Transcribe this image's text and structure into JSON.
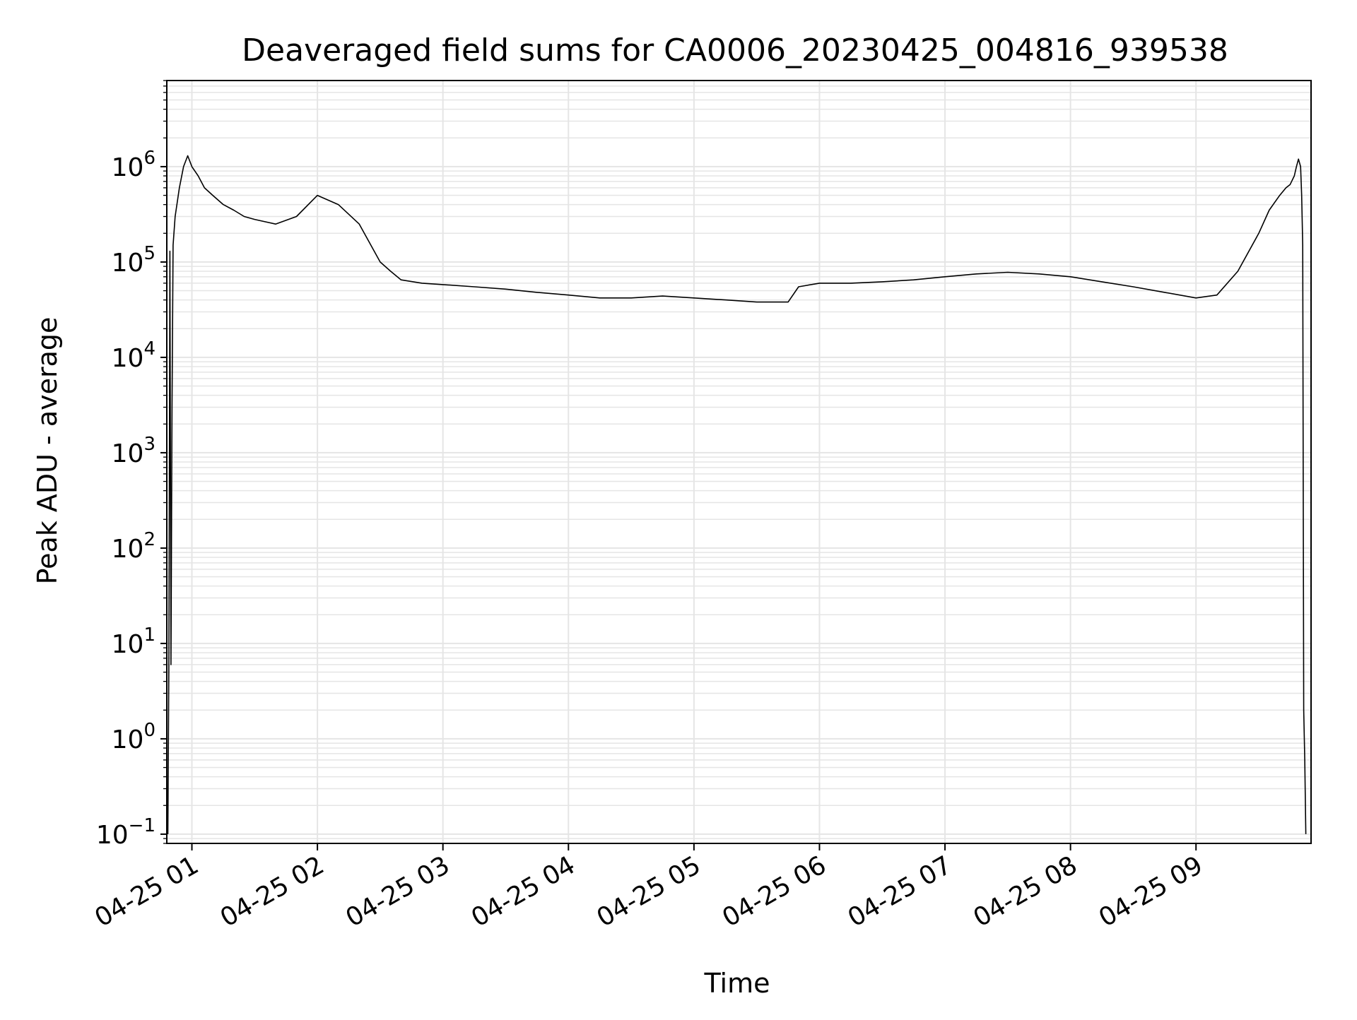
{
  "chart_data": {
    "type": "line",
    "title": "Deaveraged field sums for CA0006_20230425_004816_939538",
    "xlabel": "Time",
    "ylabel": "Peak ADU - average",
    "yscale": "log",
    "ylim": [
      0.08,
      8000000
    ],
    "xlim": [
      "04-25 00:48:00",
      "09:55:00"
    ],
    "x_tick_labels": [
      "04-25 01",
      "04-25 02",
      "04-25 03",
      "04-25 04",
      "04-25 05",
      "04-25 06",
      "04-25 07",
      "04-25 08",
      "04-25 09"
    ],
    "y_tick_labels": [
      {
        "base": "10",
        "exp": "−1",
        "value": 0.1
      },
      {
        "base": "10",
        "exp": "0",
        "value": 1
      },
      {
        "base": "10",
        "exp": "1",
        "value": 10
      },
      {
        "base": "10",
        "exp": "2",
        "value": 100
      },
      {
        "base": "10",
        "exp": "3",
        "value": 1000
      },
      {
        "base": "10",
        "exp": "4",
        "value": 10000
      },
      {
        "base": "10",
        "exp": "5",
        "value": 100000
      },
      {
        "base": "10",
        "exp": "6",
        "value": 1000000
      }
    ],
    "grid": true,
    "line_color": "#000000",
    "grid_color": "#e5e5e5",
    "series": [
      {
        "x": [
          "00:48:30",
          "00:49:00",
          "00:49:30",
          "00:50:00",
          "00:50:30",
          "00:51:00",
          "00:52:00",
          "00:54:00",
          "00:56:00",
          "00:58:00",
          "01:00:00",
          "01:03:00",
          "01:06:00",
          "01:10:00",
          "01:15:00",
          "01:20:00",
          "01:25:00",
          "01:30:00",
          "01:40:00",
          "01:50:00",
          "02:00:00",
          "02:10:00",
          "02:20:00",
          "02:30:00",
          "02:35:00",
          "02:40:00",
          "02:50:00",
          "03:00:00",
          "03:15:00",
          "03:30:00",
          "03:45:00",
          "04:00:00",
          "04:15:00",
          "04:30:00",
          "04:45:00",
          "05:00:00",
          "05:15:00",
          "05:30:00",
          "05:45:00",
          "05:50:00",
          "06:00:00",
          "06:15:00",
          "06:30:00",
          "06:45:00",
          "07:00:00",
          "07:15:00",
          "07:30:00",
          "07:45:00",
          "08:00:00",
          "08:15:00",
          "08:30:00",
          "08:45:00",
          "09:00:00",
          "09:10:00",
          "09:20:00",
          "09:30:00",
          "09:35:00",
          "09:40:00",
          "09:43:00",
          "09:45:00",
          "09:47:00",
          "09:48:00",
          "09:49:00",
          "09:50:00",
          "09:50:30",
          "09:51:00",
          "09:51:30",
          "09:52:00",
          "09:52:30"
        ],
        "y": [
          0.1,
          8,
          130000,
          6,
          3000,
          150000,
          300000,
          600000,
          1000000,
          1300000,
          1000000,
          800000,
          600000,
          500000,
          400000,
          350000,
          300000,
          280000,
          250000,
          300000,
          500000,
          400000,
          250000,
          100000,
          80000,
          65000,
          60000,
          58000,
          55000,
          52000,
          48000,
          45000,
          42000,
          42000,
          44000,
          42000,
          40000,
          38000,
          38000,
          55000,
          60000,
          60000,
          62000,
          65000,
          70000,
          75000,
          78000,
          75000,
          70000,
          62000,
          55000,
          48000,
          42000,
          45000,
          80000,
          200000,
          350000,
          500000,
          600000,
          650000,
          800000,
          1000000,
          1200000,
          1000000,
          500000,
          150000,
          2,
          0.6,
          0.1
        ]
      }
    ]
  }
}
